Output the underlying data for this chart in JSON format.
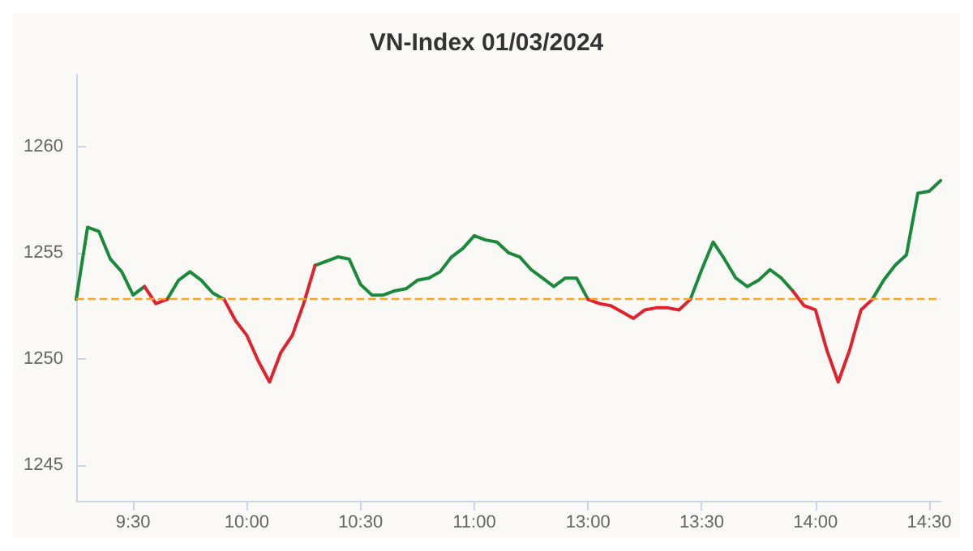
{
  "chart_data": {
    "type": "line",
    "title": "VN-Index 01/03/2024",
    "categories": [
      null,
      null,
      null,
      null,
      null,
      "9:30",
      null,
      null,
      null,
      null,
      null,
      null,
      null,
      null,
      null,
      "10:00",
      null,
      null,
      null,
      null,
      null,
      null,
      null,
      null,
      null,
      "10:30",
      null,
      null,
      null,
      null,
      null,
      null,
      null,
      null,
      null,
      "11:00",
      null,
      null,
      null,
      null,
      null,
      null,
      null,
      null,
      null,
      "13:00",
      null,
      null,
      null,
      null,
      null,
      null,
      null,
      null,
      null,
      "13:30",
      null,
      null,
      null,
      null,
      null,
      null,
      null,
      null,
      null,
      "14:00",
      null,
      null,
      null,
      null,
      null,
      null,
      null,
      null,
      null,
      "14:30",
      null
    ],
    "series": [
      {
        "color": "#1a8a3a",
        "values": [
          1252.8,
          1256.2,
          1256.0,
          1254.7,
          1254.1,
          1253.0,
          1253.4,
          null,
          1252.8,
          1253.7,
          1254.1,
          1253.7,
          1253.1,
          1252.8,
          null,
          null,
          null,
          null,
          null,
          null,
          null,
          1254.4,
          1254.6,
          1254.8,
          1254.7,
          1253.5,
          1253.0,
          1253.0,
          1253.2,
          1253.3,
          1253.7,
          1253.8,
          1254.1,
          1254.8,
          1255.2,
          1255.8,
          1255.6,
          1255.5,
          1255.0,
          1254.8,
          1254.2,
          1253.8,
          1253.4,
          1253.8,
          1253.8,
          1252.8,
          null,
          null,
          null,
          null,
          null,
          null,
          null,
          null,
          1252.8,
          1254.2,
          1255.5,
          1254.7,
          1253.8,
          1253.4,
          1253.7,
          1254.2,
          1253.8,
          1253.2,
          null,
          null,
          null,
          null,
          null,
          null,
          1252.8,
          1253.7,
          1254.4,
          1254.9,
          1257.8,
          1257.9,
          1258.4
        ]
      },
      {
        "color": "#e0222e",
        "values": [
          null,
          null,
          null,
          null,
          null,
          null,
          1253.4,
          1252.6,
          1252.8,
          null,
          null,
          null,
          null,
          1252.8,
          1251.8,
          1251.1,
          1249.9,
          1248.9,
          1250.3,
          1251.1,
          1252.6,
          1254.4,
          null,
          null,
          null,
          null,
          null,
          null,
          null,
          null,
          null,
          null,
          null,
          null,
          null,
          null,
          null,
          null,
          null,
          null,
          null,
          null,
          null,
          null,
          null,
          1252.8,
          1252.6,
          1252.5,
          1252.2,
          1251.9,
          1252.3,
          1252.4,
          1252.4,
          1252.3,
          1252.8,
          null,
          null,
          null,
          null,
          null,
          null,
          null,
          null,
          1253.2,
          1252.5,
          1252.3,
          1250.4,
          1248.9,
          1250.4,
          1252.3,
          1252.8,
          null,
          null,
          null,
          null,
          null,
          null
        ]
      }
    ],
    "ylim": [
      1243.3,
      1263.4
    ],
    "yticks": [
      1245,
      1250,
      1255,
      1260
    ],
    "grid": false,
    "marker": "none",
    "line_style": "solid",
    "ref_lines": [
      {
        "axis": "y",
        "value": 1252.8,
        "color": "#f5a623",
        "line_style": "dashed"
      }
    ]
  }
}
